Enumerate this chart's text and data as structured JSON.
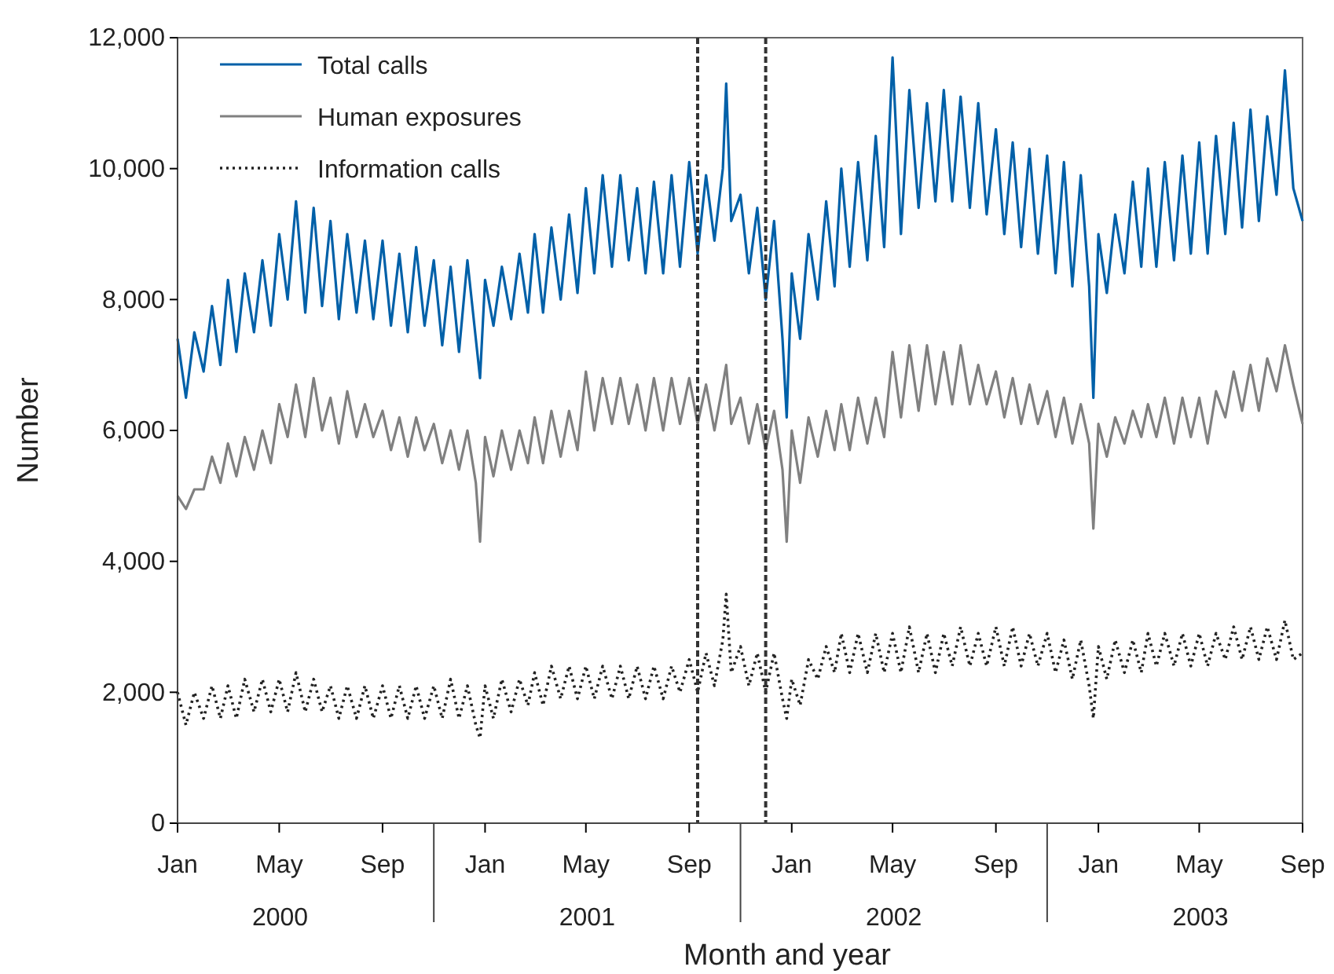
{
  "chart_data": {
    "type": "line",
    "xlabel": "Month and year",
    "ylabel": "Number",
    "x": [
      "2000-01-01",
      "2000-01-11",
      "2000-01-21",
      "2000-02-01",
      "2000-02-11",
      "2000-02-21",
      "2000-03-01",
      "2000-03-11",
      "2000-03-21",
      "2000-04-01",
      "2000-04-11",
      "2000-04-21",
      "2000-05-01",
      "2000-05-11",
      "2000-05-21",
      "2000-06-01",
      "2000-06-11",
      "2000-06-21",
      "2000-07-01",
      "2000-07-11",
      "2000-07-21",
      "2000-08-01",
      "2000-08-11",
      "2000-08-21",
      "2000-09-01",
      "2000-09-11",
      "2000-09-21",
      "2000-10-01",
      "2000-10-11",
      "2000-10-21",
      "2000-11-01",
      "2000-11-11",
      "2000-11-21",
      "2000-12-01",
      "2000-12-11",
      "2000-12-21",
      "2000-12-26",
      "2001-01-01",
      "2001-01-11",
      "2001-01-21",
      "2001-02-01",
      "2001-02-11",
      "2001-02-21",
      "2001-03-01",
      "2001-03-11",
      "2001-03-21",
      "2001-04-01",
      "2001-04-11",
      "2001-04-21",
      "2001-05-01",
      "2001-05-11",
      "2001-05-21",
      "2001-06-01",
      "2001-06-11",
      "2001-06-21",
      "2001-07-01",
      "2001-07-11",
      "2001-07-21",
      "2001-08-01",
      "2001-08-11",
      "2001-08-21",
      "2001-09-01",
      "2001-09-11",
      "2001-09-21",
      "2001-10-01",
      "2001-10-11",
      "2001-10-15",
      "2001-10-21",
      "2001-11-01",
      "2001-11-11",
      "2001-11-21",
      "2001-12-01",
      "2001-12-11",
      "2001-12-21",
      "2001-12-26",
      "2002-01-01",
      "2002-01-11",
      "2002-01-21",
      "2002-02-01",
      "2002-02-11",
      "2002-02-21",
      "2002-03-01",
      "2002-03-11",
      "2002-03-21",
      "2002-04-01",
      "2002-04-11",
      "2002-04-21",
      "2002-05-01",
      "2002-05-11",
      "2002-05-21",
      "2002-06-01",
      "2002-06-11",
      "2002-06-21",
      "2002-07-01",
      "2002-07-11",
      "2002-07-21",
      "2002-08-01",
      "2002-08-11",
      "2002-08-21",
      "2002-09-01",
      "2002-09-11",
      "2002-09-21",
      "2002-10-01",
      "2002-10-11",
      "2002-10-21",
      "2002-11-01",
      "2002-11-11",
      "2002-11-21",
      "2002-12-01",
      "2002-12-11",
      "2002-12-21",
      "2002-12-26",
      "2003-01-01",
      "2003-01-11",
      "2003-01-21",
      "2003-02-01",
      "2003-02-11",
      "2003-02-21",
      "2003-03-01",
      "2003-03-11",
      "2003-03-21",
      "2003-04-01",
      "2003-04-11",
      "2003-04-21",
      "2003-05-01",
      "2003-05-11",
      "2003-05-21",
      "2003-06-01",
      "2003-06-11",
      "2003-06-21",
      "2003-07-01",
      "2003-07-11",
      "2003-07-21",
      "2003-08-01",
      "2003-08-11",
      "2003-08-21",
      "2003-09-01"
    ],
    "series": [
      {
        "name": "Total calls",
        "color": "#0060a8",
        "line_style": "solid",
        "values": [
          7400,
          6500,
          7500,
          6900,
          7900,
          7000,
          8300,
          7200,
          8400,
          7500,
          8600,
          7600,
          9000,
          8000,
          9500,
          7800,
          9400,
          7900,
          9200,
          7700,
          9000,
          7800,
          8900,
          7700,
          8900,
          7600,
          8700,
          7500,
          8800,
          7600,
          8600,
          7300,
          8500,
          7200,
          8600,
          7400,
          6800,
          8300,
          7600,
          8500,
          7700,
          8700,
          7800,
          9000,
          7800,
          9100,
          8000,
          9300,
          8100,
          9700,
          8400,
          9900,
          8500,
          9900,
          8600,
          9700,
          8400,
          9800,
          8400,
          9900,
          8500,
          10100,
          8700,
          9900,
          8900,
          10000,
          11300,
          9200,
          9600,
          8400,
          9400,
          8000,
          9200,
          7400,
          6200,
          8400,
          7400,
          9000,
          8000,
          9500,
          8200,
          10000,
          8500,
          10100,
          8600,
          10500,
          8800,
          11700,
          9000,
          11200,
          9400,
          11000,
          9500,
          11200,
          9500,
          11100,
          9400,
          11000,
          9300,
          10600,
          9000,
          10400,
          8800,
          10300,
          8700,
          10200,
          8400,
          10100,
          8200,
          9900,
          8200,
          6500,
          9000,
          8100,
          9300,
          8400,
          9800,
          8500,
          10000,
          8500,
          10100,
          8600,
          10200,
          8700,
          10400,
          8700,
          10500,
          9000,
          10700,
          9100,
          10900,
          9200,
          10800,
          9600,
          11500,
          9700,
          9200
        ]
      },
      {
        "name": "Human exposures",
        "color": "#808080",
        "line_style": "solid",
        "values": [
          5000,
          4800,
          5100,
          5100,
          5600,
          5200,
          5800,
          5300,
          5900,
          5400,
          6000,
          5500,
          6400,
          5900,
          6700,
          5900,
          6800,
          6000,
          6500,
          5800,
          6600,
          5900,
          6400,
          5900,
          6300,
          5700,
          6200,
          5600,
          6200,
          5700,
          6100,
          5500,
          6000,
          5400,
          6000,
          5200,
          4300,
          5900,
          5300,
          6000,
          5400,
          6000,
          5500,
          6200,
          5500,
          6300,
          5600,
          6300,
          5700,
          6900,
          6000,
          6800,
          6100,
          6800,
          6100,
          6700,
          6000,
          6800,
          6000,
          6800,
          6100,
          6800,
          6100,
          6700,
          6000,
          6700,
          7000,
          6100,
          6500,
          5800,
          6400,
          5700,
          6300,
          5400,
          4300,
          6000,
          5200,
          6200,
          5600,
          6300,
          5700,
          6400,
          5700,
          6500,
          5800,
          6500,
          5900,
          7200,
          6200,
          7300,
          6300,
          7300,
          6400,
          7200,
          6400,
          7300,
          6400,
          7000,
          6400,
          6900,
          6200,
          6800,
          6100,
          6700,
          6100,
          6600,
          5900,
          6500,
          5800,
          6400,
          5800,
          4500,
          6100,
          5600,
          6200,
          5800,
          6300,
          5900,
          6400,
          5900,
          6500,
          5800,
          6500,
          5900,
          6500,
          5800,
          6600,
          6200,
          6900,
          6300,
          7000,
          6300,
          7100,
          6600,
          7300,
          6700,
          6100
        ]
      },
      {
        "name": "Information calls",
        "color": "#222222",
        "line_style": "dotted",
        "values": [
          2000,
          1500,
          2000,
          1600,
          2100,
          1600,
          2100,
          1600,
          2200,
          1700,
          2200,
          1700,
          2200,
          1700,
          2300,
          1700,
          2200,
          1700,
          2100,
          1600,
          2100,
          1600,
          2100,
          1600,
          2100,
          1600,
          2100,
          1600,
          2100,
          1600,
          2100,
          1600,
          2200,
          1600,
          2100,
          1500,
          1300,
          2100,
          1600,
          2200,
          1700,
          2200,
          1800,
          2300,
          1800,
          2400,
          1900,
          2400,
          1900,
          2400,
          1900,
          2400,
          1900,
          2400,
          1900,
          2400,
          1900,
          2400,
          1900,
          2400,
          2000,
          2500,
          2000,
          2600,
          2100,
          2800,
          3500,
          2300,
          2700,
          2100,
          2600,
          2000,
          2600,
          1900,
          1600,
          2200,
          1800,
          2500,
          2200,
          2700,
          2300,
          2900,
          2300,
          2900,
          2300,
          2900,
          2300,
          2900,
          2300,
          3000,
          2300,
          2900,
          2300,
          2900,
          2400,
          3000,
          2400,
          2900,
          2400,
          3000,
          2400,
          3000,
          2400,
          2900,
          2400,
          2900,
          2300,
          2800,
          2200,
          2800,
          2100,
          1600,
          2700,
          2200,
          2800,
          2300,
          2800,
          2300,
          2900,
          2400,
          2900,
          2400,
          2900,
          2400,
          2900,
          2400,
          2900,
          2500,
          3000,
          2500,
          3000,
          2500,
          3000,
          2500,
          3100,
          2500,
          2600
        ]
      }
    ],
    "xlim": [
      "2000-01-01",
      "2003-09-01"
    ],
    "xticks": [
      {
        "value": "2000-01-01",
        "label": "Jan"
      },
      {
        "value": "2000-05-01",
        "label": "May"
      },
      {
        "value": "2000-09-01",
        "label": "Sep"
      },
      {
        "value": "2001-01-01",
        "label": "Jan"
      },
      {
        "value": "2001-05-01",
        "label": "May"
      },
      {
        "value": "2001-09-01",
        "label": "Sep"
      },
      {
        "value": "2002-01-01",
        "label": "Jan"
      },
      {
        "value": "2002-05-01",
        "label": "May"
      },
      {
        "value": "2002-09-01",
        "label": "Sep"
      },
      {
        "value": "2003-01-01",
        "label": "Jan"
      },
      {
        "value": "2003-05-01",
        "label": "May"
      },
      {
        "value": "2003-09-01",
        "label": "Sep"
      }
    ],
    "ylim": [
      0,
      12000
    ],
    "yticks": [
      0,
      {
        "value": 2000,
        "label": "2,000"
      },
      {
        "value": 4000,
        "label": "4,000"
      },
      {
        "value": 6000,
        "label": "6,000"
      },
      {
        "value": 8000,
        "label": "8,000"
      },
      {
        "value": 10000,
        "label": "10,000"
      },
      {
        "value": 12000,
        "label": "12,000"
      }
    ],
    "annotations": [
      "2000",
      "2001",
      "2002",
      "2003"
    ],
    "ref_lines": [
      {
        "axis": "x",
        "value": "2001-09-11",
        "color": "#333333",
        "line_style": "dashed"
      },
      {
        "axis": "x",
        "value": "2001-12-01",
        "color": "#333333",
        "line_style": "dashed"
      }
    ],
    "grid": false,
    "legend": "top left",
    "marker": "none"
  }
}
